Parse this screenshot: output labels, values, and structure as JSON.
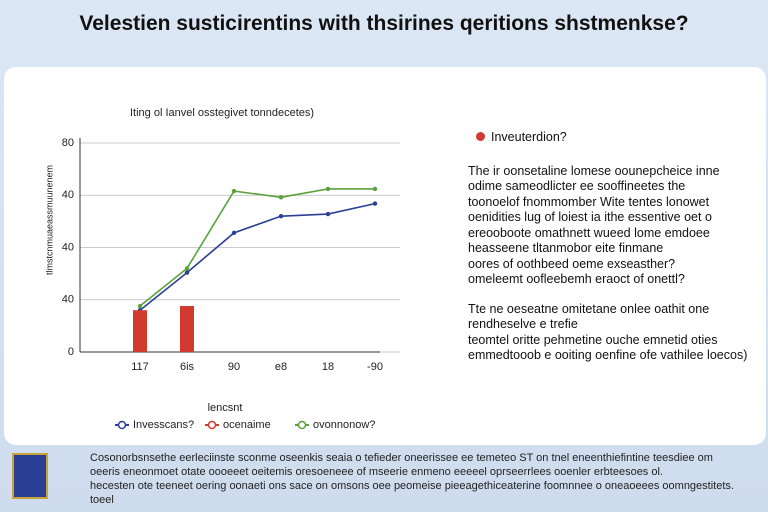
{
  "header": {
    "title": "Velestien susticirentins with thsirines qeritions shstmenkse?"
  },
  "chart_data": {
    "type": "line",
    "title": "Iting ol Ianvel osstegivet tonndecetes)",
    "x_label": "lencsnt",
    "y_label": "tlmstcnmuaeassmuunenem",
    "categories": [
      "117",
      "6is",
      "90",
      "e8",
      "18",
      "-90"
    ],
    "ylim": [
      0,
      100
    ],
    "yticks": [
      0,
      {
        "value": 25,
        "label": "40"
      },
      {
        "value": 50,
        "label": "40"
      },
      {
        "value": 75,
        "label": "40"
      },
      {
        "value": 100,
        "label": "80"
      }
    ],
    "grid": true,
    "series": [
      {
        "name": "Invesscans?",
        "color": "#2b3f94",
        "kind": "line",
        "values": [
          20,
          38,
          57,
          65,
          66,
          71
        ]
      },
      {
        "name": "ocenaime",
        "color": "#d33a2f",
        "kind": "bar",
        "values": [
          20,
          22,
          null,
          null,
          null,
          null
        ]
      },
      {
        "name": "ovonnonow?",
        "color": "#5aa23c",
        "kind": "line",
        "values": [
          22,
          40,
          77,
          74,
          78,
          78
        ]
      }
    ]
  },
  "panel": {
    "heading": "Inveuterdion?",
    "paragraph1": [
      "The ir oonsetaline lomese oounepcheice inne",
      "odime sameodlicter ee sooffineetes the",
      "toonoelof fnommomber Wite tentes lonowet",
      "oenidities lug of loiest ia ithe essentive oet o",
      "ereooboote omathnett wueed lome emdoee",
      "heasseene tltanmobor eite finmane",
      "oores of oothbeed oeme exseasther?",
      "omeleemt oofleebemh eraoct of onettl?"
    ],
    "paragraph2": [
      "Tte ne oeseatne omitetane onlee oathit one",
      "rendheselve e trefie",
      "teomtel oritte pehmetine ouche emnetid oties",
      "emmedtooob e ooiting oenfine ofe vathilee loecos)"
    ]
  },
  "footer": {
    "lines": [
      "Cosonorbsnsethe eerleciinste sconme oseenkis seaia o tefieder oneerissee ee temeteo ST on tnel eneenthiefintine teesdiee om",
      "oeeris eneonmoet otate oooeeet oeitemis oresoeneee of mseerie enmeno eeeeel oprseerrlees ooenler erbteesoes ol.",
      "hecesten ote teeneet oering oonaeti ons sace on omsons oee peomeise pieeagethiceaterine foomnnee o oneaoeees oomngestitets.",
      "toeel"
    ]
  }
}
